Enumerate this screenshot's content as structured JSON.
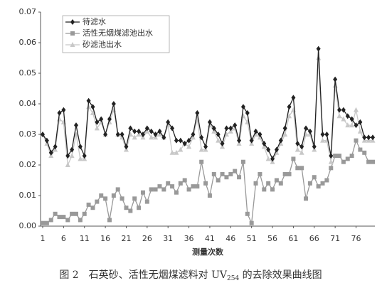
{
  "chart_data": {
    "type": "line",
    "x_label": "测量次数",
    "caption": {
      "main": "图 2　石英砂、活性无烟煤滤料对 UV",
      "sub": "254",
      "tail": " 的去除效果曲线图"
    },
    "x": [
      1,
      2,
      3,
      4,
      5,
      6,
      7,
      8,
      9,
      10,
      11,
      12,
      13,
      14,
      15,
      16,
      17,
      18,
      19,
      20,
      21,
      22,
      23,
      24,
      25,
      26,
      27,
      28,
      29,
      30,
      31,
      32,
      33,
      34,
      35,
      36,
      37,
      38,
      39,
      40,
      41,
      42,
      43,
      44,
      45,
      46,
      47,
      48,
      49,
      50,
      51,
      52,
      53,
      54,
      55,
      56,
      57,
      58,
      59,
      60,
      61,
      62,
      63,
      64,
      65,
      66,
      67,
      68,
      69,
      70,
      71,
      72,
      73,
      74,
      75,
      76,
      77,
      78,
      79,
      80
    ],
    "xlim": [
      1,
      80
    ],
    "xticks": [
      1,
      6,
      11,
      16,
      21,
      26,
      31,
      36,
      41,
      46,
      51,
      56,
      61,
      66,
      71,
      76
    ],
    "ylim": [
      0,
      0.07
    ],
    "yticks": [
      {
        "value": 0,
        "label": "0.00"
      },
      0.01,
      0.02,
      0.03,
      0.04,
      0.05,
      0.06,
      0.07
    ],
    "grid": false,
    "legend": "upper left",
    "series": [
      {
        "name": "待滤水",
        "color": "#222222",
        "marker": "diamond",
        "values": [
          0.03,
          0.028,
          0.024,
          0.026,
          0.037,
          0.038,
          0.023,
          0.025,
          0.033,
          0.026,
          0.023,
          0.041,
          0.039,
          0.034,
          0.035,
          0.03,
          0.035,
          0.04,
          0.03,
          0.03,
          0.026,
          0.032,
          0.031,
          0.031,
          0.03,
          0.032,
          0.031,
          0.03,
          0.031,
          0.029,
          0.034,
          0.032,
          0.028,
          0.028,
          0.027,
          0.028,
          0.03,
          0.037,
          0.029,
          0.026,
          0.034,
          0.032,
          0.03,
          0.027,
          0.032,
          0.032,
          0.033,
          0.028,
          0.039,
          0.037,
          0.028,
          0.031,
          0.03,
          0.027,
          0.025,
          0.022,
          0.025,
          0.028,
          0.032,
          0.039,
          0.042,
          0.027,
          0.026,
          0.032,
          0.031,
          0.026,
          0.058,
          0.03,
          0.03,
          0.023,
          0.048,
          0.038,
          0.038,
          0.036,
          0.035,
          0.033,
          0.034,
          0.029,
          0.029,
          0.029
        ]
      },
      {
        "name": "活性无烟煤滤池出水",
        "color": "#999999",
        "marker": "square",
        "values": [
          0.001,
          0.001,
          0.002,
          0.004,
          0.003,
          0.003,
          0.002,
          0.004,
          0.004,
          0.002,
          0.004,
          0.007,
          0.006,
          0.008,
          0.01,
          0.009,
          0.002,
          0.01,
          0.012,
          0.009,
          0.006,
          0.005,
          0.009,
          0.006,
          0.011,
          0.008,
          0.012,
          0.012,
          0.013,
          0.012,
          0.014,
          0.013,
          0.011,
          0.014,
          0.015,
          0.012,
          0.013,
          0.013,
          0.021,
          0.014,
          0.01,
          0.017,
          0.015,
          0.017,
          0.016,
          0.017,
          0.018,
          0.016,
          0.021,
          0.004,
          0.001,
          0.014,
          0.017,
          0.012,
          0.014,
          0.012,
          0.015,
          0.014,
          0.017,
          0.017,
          0.022,
          0.019,
          0.019,
          0.009,
          0.014,
          0.016,
          0.013,
          0.014,
          0.015,
          0.019,
          0.023,
          0.023,
          0.021,
          0.022,
          0.023,
          0.028,
          0.025,
          0.024,
          0.021,
          0.021
        ]
      },
      {
        "name": "砂滤池出水",
        "color": "#c8c8c8",
        "marker": "triangle",
        "values": [
          0.03,
          0.027,
          0.023,
          0.025,
          0.035,
          0.034,
          0.02,
          0.023,
          0.03,
          0.022,
          0.022,
          0.039,
          0.037,
          0.032,
          0.034,
          0.03,
          0.034,
          0.038,
          0.03,
          0.029,
          0.025,
          0.03,
          0.029,
          0.03,
          0.029,
          0.031,
          0.029,
          0.029,
          0.03,
          0.029,
          0.033,
          0.024,
          0.024,
          0.025,
          0.027,
          0.026,
          0.029,
          0.035,
          0.025,
          0.025,
          0.033,
          0.031,
          0.028,
          0.026,
          0.03,
          0.031,
          0.032,
          0.027,
          0.036,
          0.034,
          0.027,
          0.03,
          0.029,
          0.026,
          0.022,
          0.021,
          0.024,
          0.027,
          0.03,
          0.036,
          0.038,
          0.025,
          0.024,
          0.03,
          0.03,
          0.025,
          0.055,
          0.028,
          0.028,
          0.021,
          0.046,
          0.036,
          0.035,
          0.033,
          0.033,
          0.038,
          0.031,
          0.028,
          0.028,
          0.028
        ]
      }
    ]
  }
}
